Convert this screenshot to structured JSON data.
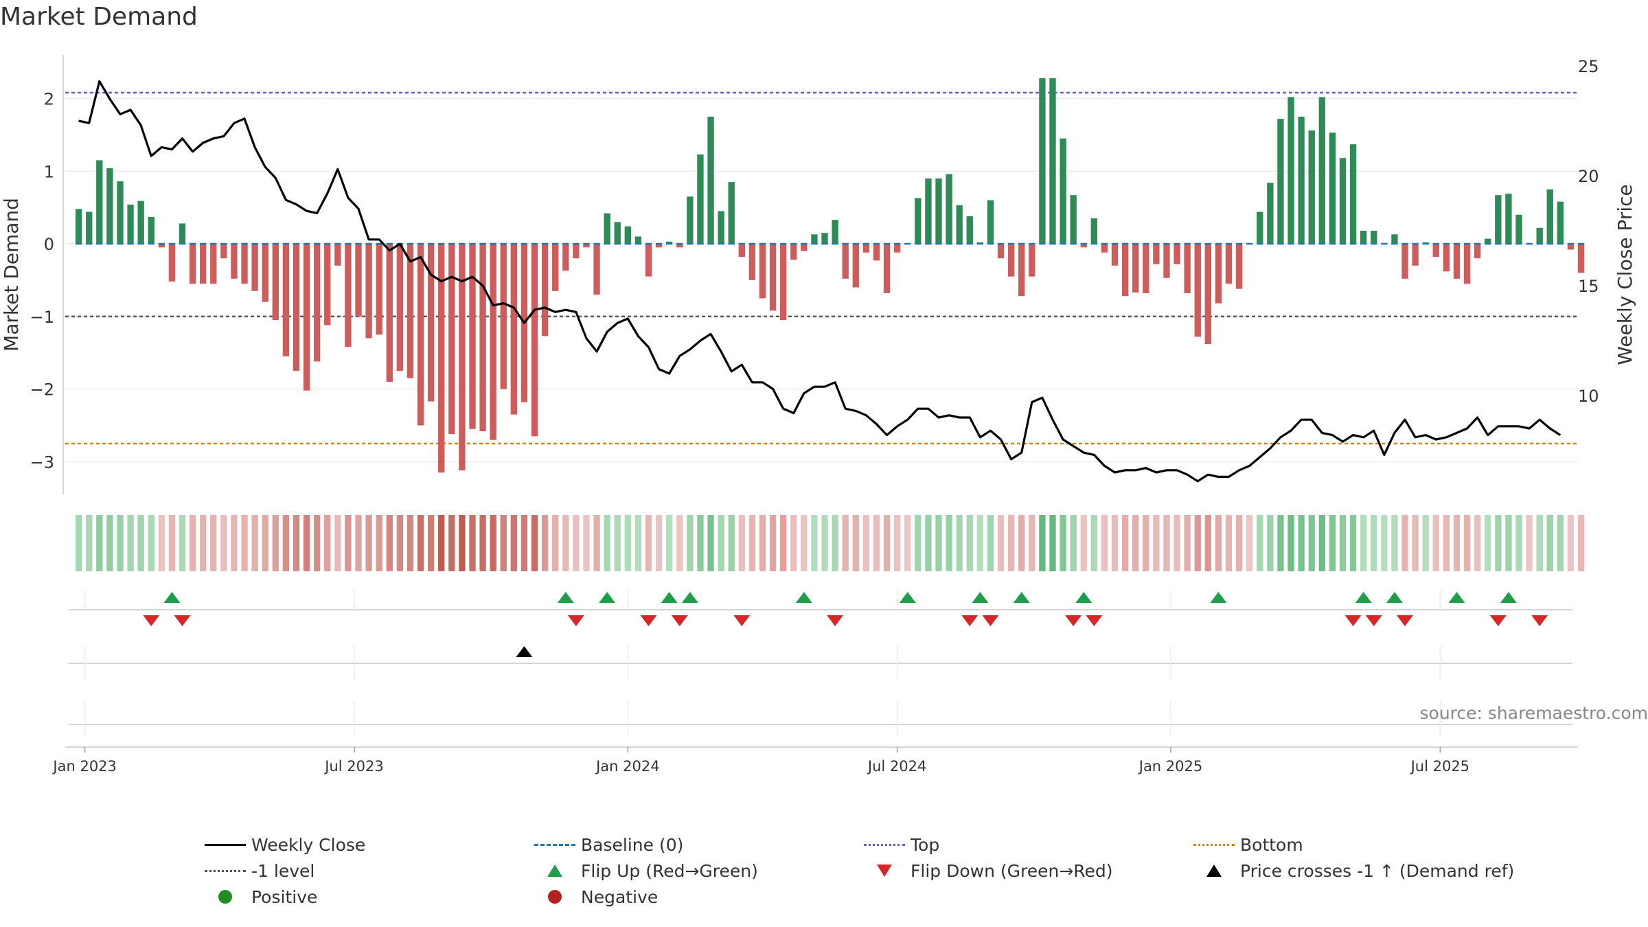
{
  "title": "Market Demand",
  "source_note": "source: sharemaestro.com",
  "colors": {
    "positive_bar": "#2e8b57",
    "negative_bar": "#cd5c5c",
    "price_line": "#000000",
    "baseline": "#1f77b4",
    "top_line": "#6a5acd",
    "minus1_line": "#555555",
    "bottom_line": "#d98300",
    "flip_up": "#1e9e4a",
    "flip_down": "#d62728",
    "price_cross": "#000000",
    "positive_dot": "#228b22",
    "negative_dot": "#b22222"
  },
  "legend": [
    {
      "label": "Weekly Close",
      "kind": "line",
      "color": "#000000",
      "dash": "solid"
    },
    {
      "label": "Baseline (0)",
      "kind": "line",
      "color": "#1f77b4",
      "dash": "dashed"
    },
    {
      "label": "Top",
      "kind": "line",
      "color": "#6a5acd",
      "dash": "dotted"
    },
    {
      "label": "Bottom",
      "kind": "line",
      "color": "#d98300",
      "dash": "dotted"
    },
    {
      "label": "-1 level",
      "kind": "line",
      "color": "#555555",
      "dash": "dotted"
    },
    {
      "label": "Flip Up (Red→Green)",
      "kind": "tri-up"
    },
    {
      "label": "Flip Down (Green→Red)",
      "kind": "tri-down"
    },
    {
      "label": "Price crosses -1 ↑ (Demand ref)",
      "kind": "tri-up-black"
    },
    {
      "label": "Positive",
      "kind": "dot",
      "color": "#228b22"
    },
    {
      "label": "Negative",
      "kind": "dot",
      "color": "#b22222"
    }
  ],
  "chart_data": {
    "type": "bar",
    "title": "Market Demand",
    "ylabel": "Market Demand",
    "y2label": "Weekly Close Price",
    "ylim": [
      -3.45,
      2.6
    ],
    "y2lim": [
      5.5,
      25.5
    ],
    "yticks": [
      2,
      1,
      0,
      -1,
      -2,
      -3
    ],
    "y2ticks": [
      25,
      20,
      15,
      10
    ],
    "ytick_labels": [
      "2",
      "1",
      "0",
      "−1",
      "−2",
      "−3"
    ],
    "y2tick_labels": [
      "25",
      "20",
      "15",
      "10"
    ],
    "x_start_week_offset": -1.3,
    "x_week_span": 146,
    "x_ticks": [
      {
        "label": "Jan 2023",
        "week": 0.6
      },
      {
        "label": "Jul 2023",
        "week": 26.6
      },
      {
        "label": "Jan 2024",
        "week": 53.0
      },
      {
        "label": "Jul 2024",
        "week": 79.0
      },
      {
        "label": "Jan 2025",
        "week": 105.4
      },
      {
        "label": "Jul 2025",
        "week": 131.4
      }
    ],
    "reference_lines": {
      "top": 2.08,
      "minus1": -1.0,
      "bottom": -2.75,
      "baseline": 0
    },
    "demand": [
      0.48,
      0.44,
      1.15,
      1.04,
      0.86,
      0.54,
      0.59,
      0.37,
      -0.05,
      -0.52,
      0.28,
      -0.55,
      -0.55,
      -0.55,
      -0.2,
      -0.48,
      -0.55,
      -0.65,
      -0.8,
      -1.05,
      -1.55,
      -1.75,
      -2.02,
      -1.62,
      -1.12,
      -0.3,
      -1.42,
      -1.0,
      -1.3,
      -1.25,
      -1.9,
      -1.75,
      -1.85,
      -2.5,
      -2.17,
      -3.15,
      -2.62,
      -3.12,
      -2.55,
      -2.58,
      -2.7,
      -2.0,
      -2.35,
      -2.18,
      -2.65,
      -1.27,
      -0.65,
      -0.37,
      -0.2,
      -0.05,
      -0.7,
      0.42,
      0.3,
      0.24,
      0.1,
      -0.45,
      -0.05,
      0.03,
      -0.05,
      0.65,
      1.23,
      1.75,
      0.45,
      0.85,
      -0.18,
      -0.5,
      -0.75,
      -0.92,
      -1.05,
      -0.22,
      -0.1,
      0.13,
      0.15,
      0.33,
      -0.48,
      -0.6,
      -0.12,
      -0.23,
      -0.68,
      -0.12,
      0,
      0.63,
      0.9,
      0.9,
      0.96,
      0.53,
      0.38,
      0.02,
      0.6,
      -0.2,
      -0.45,
      -0.72,
      -0.45,
      2.28,
      2.28,
      1.45,
      0.67,
      -0.05,
      0.35,
      -0.12,
      -0.3,
      -0.72,
      -0.67,
      -0.68,
      -0.28,
      -0.47,
      -0.28,
      -0.68,
      -1.28,
      -1.38,
      -0.82,
      -0.55,
      -0.62,
      0,
      0.44,
      0.84,
      1.72,
      2.02,
      1.75,
      1.56,
      2.02,
      1.53,
      1.18,
      1.37,
      0.18,
      0.18,
      0.01,
      0.13,
      -0.48,
      -0.3,
      0.02,
      -0.18,
      -0.38,
      -0.48,
      -0.55,
      -0.2,
      0.07,
      0.67,
      0.69,
      0.4,
      0,
      0.22,
      0.75,
      0.58,
      -0.08,
      -0.4
    ],
    "close": [
      22.5,
      22.4,
      24.3,
      23.5,
      22.8,
      23.0,
      22.3,
      20.9,
      21.3,
      21.2,
      21.7,
      21.1,
      21.5,
      21.7,
      21.8,
      22.4,
      22.6,
      21.3,
      20.4,
      19.9,
      18.9,
      18.7,
      18.4,
      18.3,
      19.2,
      20.3,
      19.0,
      18.5,
      17.1,
      17.1,
      16.6,
      16.9,
      16.1,
      16.3,
      15.5,
      15.2,
      15.4,
      15.2,
      15.4,
      15.0,
      14.1,
      14.2,
      14.0,
      13.3,
      13.9,
      14.0,
      13.8,
      13.9,
      13.8,
      12.6,
      12.0,
      12.9,
      13.3,
      13.5,
      12.7,
      12.2,
      11.2,
      11.0,
      11.8,
      12.1,
      12.5,
      12.8,
      12.0,
      11.1,
      11.4,
      10.6,
      10.6,
      10.3,
      9.4,
      9.2,
      10.1,
      10.4,
      10.4,
      10.6,
      9.4,
      9.3,
      9.1,
      8.7,
      8.2,
      8.6,
      8.9,
      9.4,
      9.4,
      9.0,
      9.1,
      9.0,
      9.0,
      8.1,
      8.4,
      8.0,
      7.1,
      7.4,
      9.7,
      9.9,
      8.9,
      8.0,
      7.7,
      7.4,
      7.3,
      6.8,
      6.5,
      6.6,
      6.6,
      6.7,
      6.5,
      6.6,
      6.6,
      6.4,
      6.1,
      6.4,
      6.3,
      6.3,
      6.6,
      6.8,
      7.2,
      7.6,
      8.1,
      8.4,
      8.9,
      8.9,
      8.3,
      8.2,
      7.9,
      8.2,
      8.1,
      8.4,
      7.3,
      8.3,
      8.9,
      8.1,
      8.2,
      8.0,
      8.1,
      8.3,
      8.5,
      9.0,
      8.2,
      8.6,
      8.6,
      8.6,
      8.5,
      8.9,
      8.5,
      8.2
    ],
    "heat_stripe": "one cell per week, color follows demand sign and magnitude",
    "flip_up_weeks": [
      9,
      47,
      51,
      57,
      59,
      70,
      80,
      87,
      91,
      97,
      110,
      124,
      127,
      133,
      138
    ],
    "flip_down_weeks": [
      7,
      10,
      48,
      55,
      58,
      64,
      73,
      86,
      88,
      96,
      98,
      123,
      125,
      128,
      137,
      141
    ],
    "price_cross_weeks": [
      43
    ]
  }
}
